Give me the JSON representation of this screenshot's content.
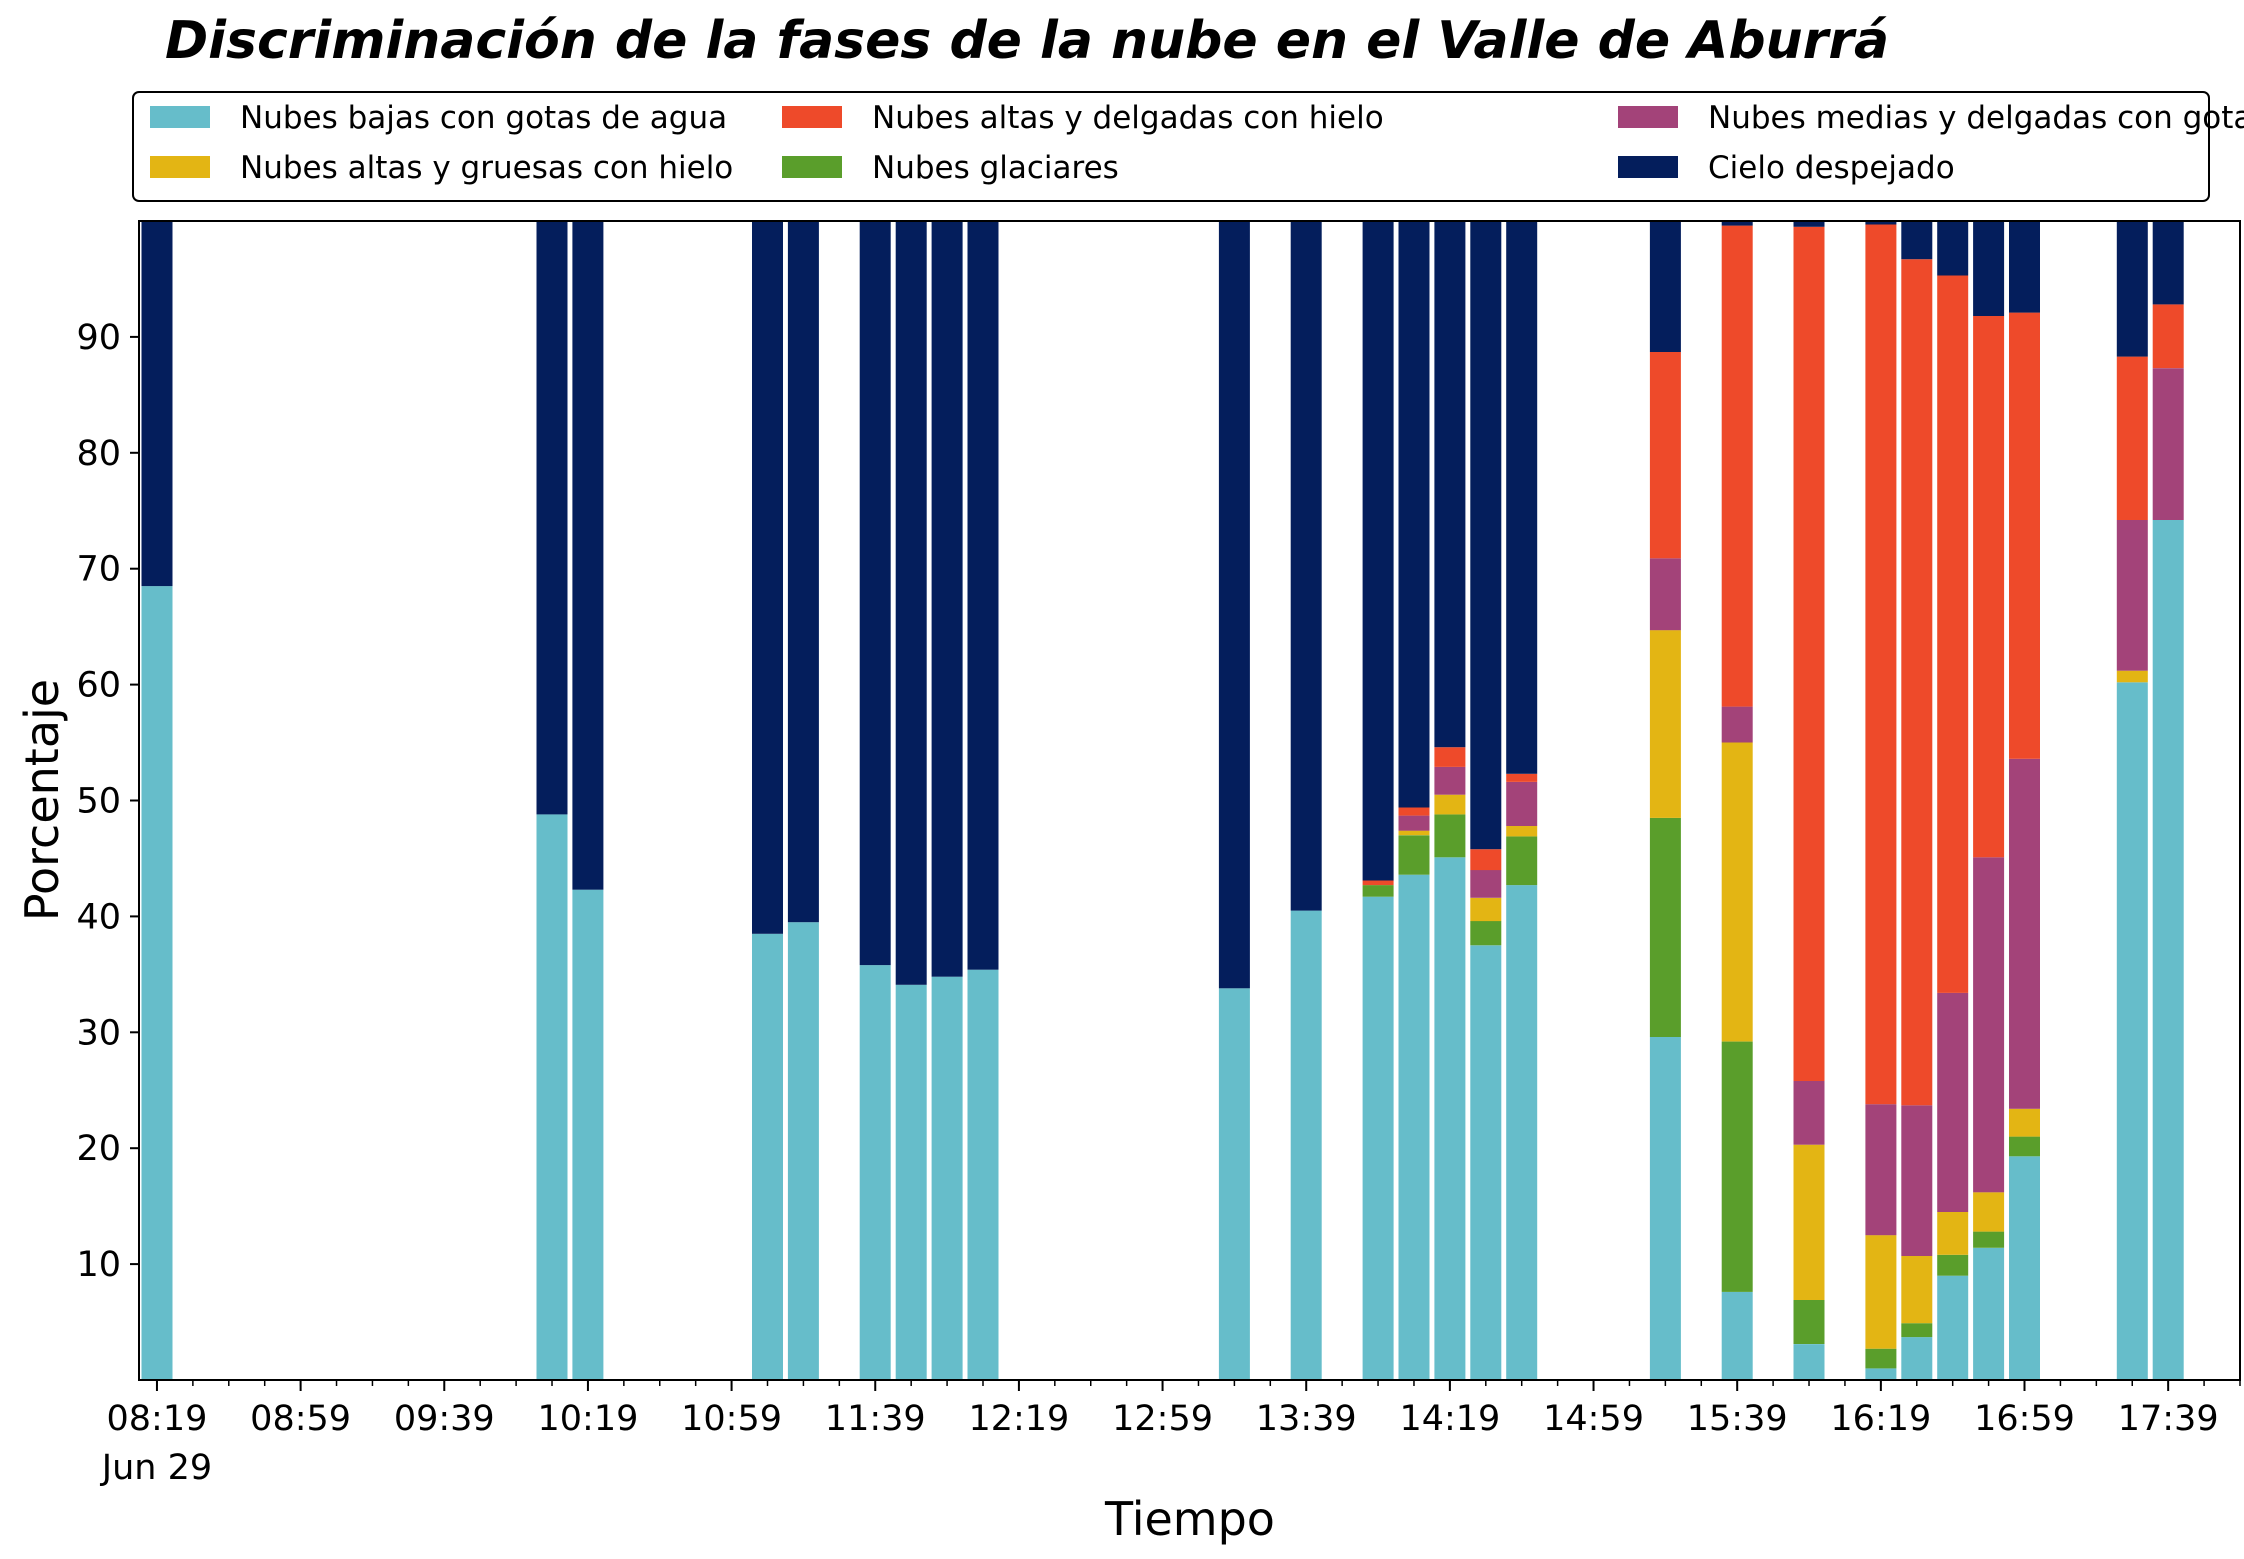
{
  "chart_data": {
    "type": "bar",
    "stacked": true,
    "title": "Discriminación de la fases de la nube en el Valle de Aburrá",
    "xlabel": "Tiempo",
    "ylabel": "Porcentaje",
    "ylim": [
      0,
      100
    ],
    "y_ticks": [
      10,
      20,
      30,
      40,
      50,
      60,
      70,
      80,
      90
    ],
    "x_range_minutes": [
      "08:14",
      "17:59"
    ],
    "x_ticks": [
      {
        "time": "08:19",
        "label": "08:19",
        "sublabel": "Jun 29"
      },
      {
        "time": "08:59",
        "label": "08:59"
      },
      {
        "time": "09:39",
        "label": "09:39"
      },
      {
        "time": "10:19",
        "label": "10:19"
      },
      {
        "time": "10:59",
        "label": "10:59"
      },
      {
        "time": "11:39",
        "label": "11:39"
      },
      {
        "time": "12:19",
        "label": "12:19"
      },
      {
        "time": "12:59",
        "label": "12:59"
      },
      {
        "time": "13:39",
        "label": "13:39"
      },
      {
        "time": "14:19",
        "label": "14:19"
      },
      {
        "time": "14:59",
        "label": "14:59"
      },
      {
        "time": "15:39",
        "label": "15:39"
      },
      {
        "time": "16:19",
        "label": "16:19"
      },
      {
        "time": "16:59",
        "label": "16:59"
      },
      {
        "time": "17:39",
        "label": "17:39"
      }
    ],
    "minor_tick_interval_minutes": 10,
    "grid": false,
    "legend_position": "top, above plot",
    "series": [
      {
        "name": "Nubes bajas con gotas de agua",
        "color": "#66bdca"
      },
      {
        "name": "Nubes glaciares",
        "color": "#5a9e2b"
      },
      {
        "name": "Nubes altas y gruesas con hielo",
        "color": "#e3b514"
      },
      {
        "name": "Nubes medias y delgadas con gotas de agua",
        "color": "#a34379"
      },
      {
        "name": "Nubes altas y delgadas con hielo",
        "color": "#ee4a2a"
      },
      {
        "name": "Cielo despejado",
        "color": "#041e5c"
      }
    ],
    "legend_order": [
      0,
      2,
      4,
      1,
      3,
      5
    ],
    "bars": [
      {
        "time": "08:19",
        "values": [
          68.5,
          0,
          0,
          0,
          0,
          31.5
        ]
      },
      {
        "time": "10:09",
        "values": [
          48.8,
          0,
          0,
          0,
          0,
          51.2
        ]
      },
      {
        "time": "10:19",
        "values": [
          42.3,
          0,
          0,
          0,
          0,
          57.7
        ]
      },
      {
        "time": "11:09",
        "values": [
          38.5,
          0,
          0,
          0,
          0,
          61.5
        ]
      },
      {
        "time": "11:19",
        "values": [
          39.5,
          0,
          0,
          0,
          0,
          60.5
        ]
      },
      {
        "time": "11:39",
        "values": [
          35.8,
          0,
          0,
          0,
          0,
          64.2
        ]
      },
      {
        "time": "11:49",
        "values": [
          34.1,
          0,
          0,
          0,
          0,
          65.9
        ]
      },
      {
        "time": "11:59",
        "values": [
          34.8,
          0,
          0,
          0,
          0,
          65.2
        ]
      },
      {
        "time": "12:09",
        "values": [
          35.4,
          0,
          0,
          0,
          0,
          64.6
        ]
      },
      {
        "time": "13:19",
        "values": [
          33.8,
          0,
          0,
          0,
          0,
          66.2
        ]
      },
      {
        "time": "13:39",
        "values": [
          40.5,
          0,
          0,
          0,
          0,
          59.5
        ]
      },
      {
        "time": "13:59",
        "values": [
          41.7,
          1.0,
          0,
          0,
          0.4,
          56.9
        ]
      },
      {
        "time": "14:09",
        "values": [
          43.6,
          3.4,
          0.4,
          1.3,
          0.7,
          50.6
        ]
      },
      {
        "time": "14:19",
        "values": [
          45.1,
          3.7,
          1.7,
          2.4,
          1.7,
          45.4
        ]
      },
      {
        "time": "14:29",
        "values": [
          37.5,
          2.1,
          2.0,
          2.4,
          1.8,
          54.2
        ]
      },
      {
        "time": "14:39",
        "values": [
          42.7,
          4.2,
          0.9,
          3.8,
          0.7,
          47.7
        ]
      },
      {
        "time": "15:19",
        "values": [
          29.6,
          18.9,
          16.2,
          6.2,
          17.8,
          11.3
        ]
      },
      {
        "time": "15:39",
        "values": [
          7.6,
          21.6,
          25.8,
          3.1,
          41.5,
          0.4
        ]
      },
      {
        "time": "15:59",
        "values": [
          3.1,
          3.8,
          13.4,
          5.5,
          73.7,
          0.5
        ]
      },
      {
        "time": "16:19",
        "values": [
          1.0,
          1.7,
          9.8,
          11.3,
          75.9,
          0.3
        ]
      },
      {
        "time": "16:29",
        "values": [
          3.7,
          1.2,
          5.8,
          13.0,
          73.0,
          3.3
        ]
      },
      {
        "time": "16:39",
        "values": [
          9.0,
          1.8,
          3.7,
          18.9,
          61.9,
          4.7
        ]
      },
      {
        "time": "16:49",
        "values": [
          11.4,
          1.4,
          3.4,
          28.9,
          46.7,
          8.2
        ]
      },
      {
        "time": "16:59",
        "values": [
          19.3,
          1.7,
          2.4,
          30.2,
          38.5,
          7.9
        ]
      },
      {
        "time": "17:29",
        "values": [
          60.2,
          0,
          1.0,
          13.0,
          14.1,
          11.7
        ]
      },
      {
        "time": "17:39",
        "values": [
          74.2,
          0,
          0,
          13.1,
          5.5,
          7.2
        ]
      }
    ]
  }
}
